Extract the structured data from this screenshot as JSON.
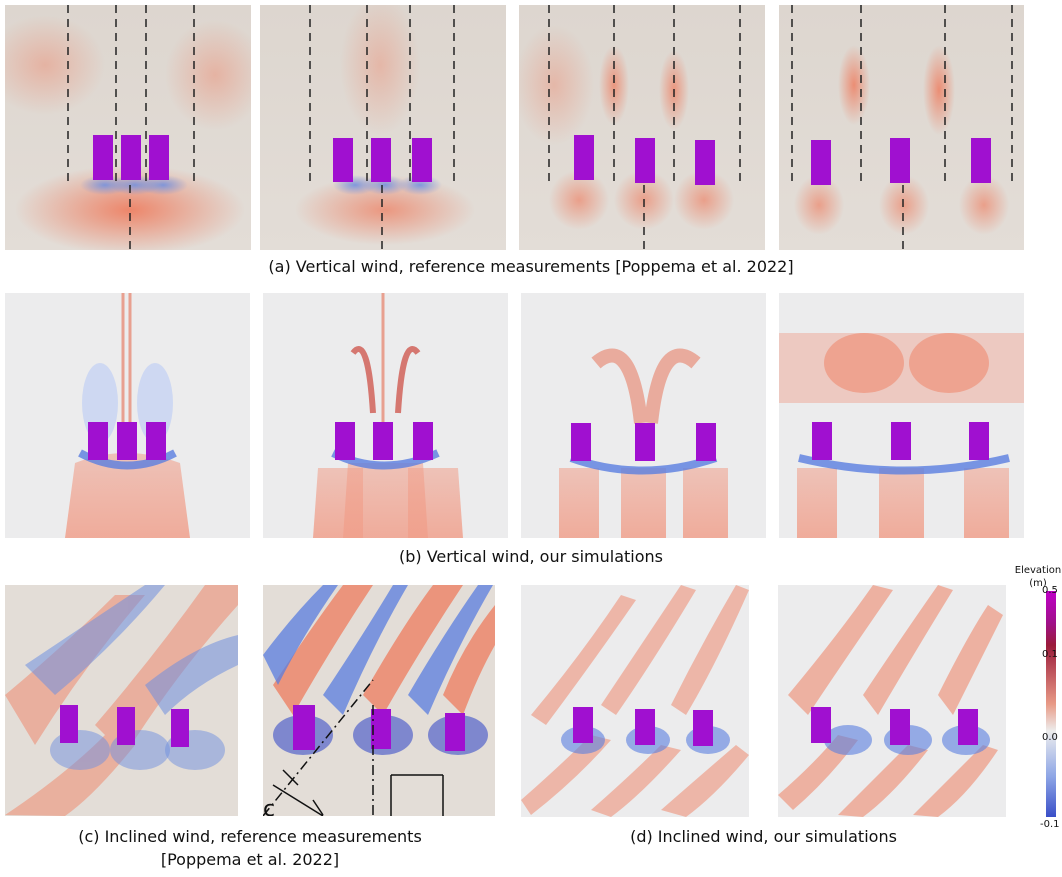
{
  "captions": {
    "a": "(a) Vertical wind, reference measurements [Poppema et al. 2022]",
    "b": "(b) Vertical wind, our simulations",
    "c_line1": "(c) Inclined wind, reference measurements",
    "c_line2": "[Poppema et al. 2022]",
    "d": "(d)  Inclined wind, our simulations"
  },
  "colorbar": {
    "title_line1": "Elevation",
    "title_line2": "(m)",
    "ticks": [
      "0.5",
      "0.1",
      "0.0",
      "-0.1"
    ],
    "colors": {
      "top": "#c000c8",
      "upper": "#9b1b3a",
      "mid_high": "#e89a86",
      "zero": "#ededed",
      "low": "#8ea6e6",
      "bottom": "#3a4fc8"
    }
  },
  "colors": {
    "obstacle": "#a010d0",
    "erosion": "#6f8fe0",
    "deposition": "#ee8a70",
    "background_photo": "#e2ddd8",
    "background_sim": "#ececed"
  },
  "annotation_letter": "c"
}
